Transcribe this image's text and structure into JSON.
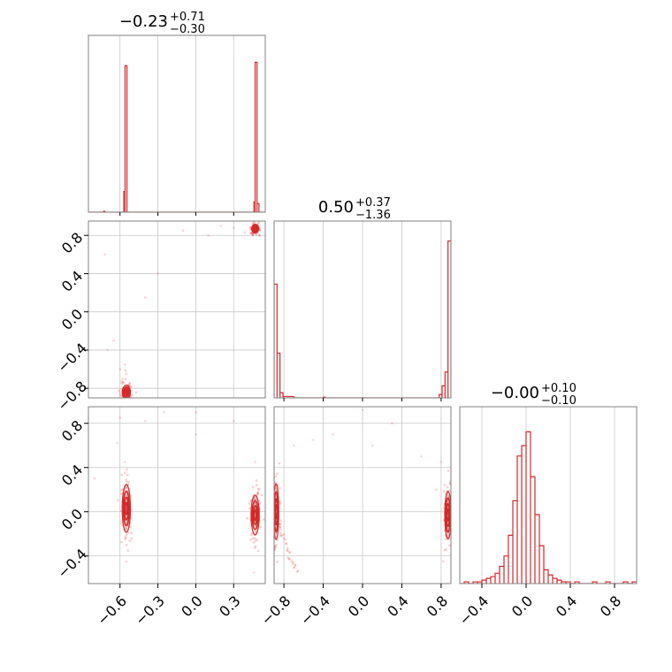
{
  "chart_data": {
    "type": "corner",
    "color": "#d62728",
    "grid": true,
    "panels": [
      {
        "kind": "hist",
        "row": 0,
        "col": 0,
        "title": {
          "median": "−0.23",
          "plus": "+0.71",
          "minus": "−0.30"
        },
        "xlim": [
          -0.85,
          0.55
        ],
        "bins": [
          [
            -0.73,
            -0.72,
            0.005
          ],
          [
            -0.57,
            -0.56,
            0.12
          ],
          [
            -0.56,
            -0.545,
            0.85
          ],
          [
            0.46,
            0.47,
            0.06
          ],
          [
            0.47,
            0.485,
            0.87
          ],
          [
            0.485,
            0.5,
            0.05
          ]
        ],
        "xgrid": [
          -0.6,
          -0.3,
          0.0,
          0.3
        ]
      },
      {
        "kind": "hist",
        "row": 1,
        "col": 1,
        "title": {
          "median": "0.50",
          "plus": "+0.37",
          "minus": "−1.36"
        },
        "xlim": [
          -0.9,
          0.9
        ],
        "bins": [
          [
            -0.9,
            -0.87,
            0.66
          ],
          [
            -0.87,
            -0.84,
            0.26
          ],
          [
            -0.84,
            -0.81,
            0.03
          ],
          [
            -0.81,
            -0.7,
            0.008
          ],
          [
            -0.4,
            -0.38,
            0.004
          ],
          [
            0.78,
            0.81,
            0.02
          ],
          [
            0.81,
            0.84,
            0.07
          ],
          [
            0.84,
            0.87,
            0.15
          ],
          [
            0.87,
            0.9,
            0.91
          ]
        ],
        "xgrid": [
          -0.8,
          -0.4,
          0.0,
          0.4,
          0.8
        ]
      },
      {
        "kind": "hist",
        "row": 2,
        "col": 2,
        "title": {
          "median": "−0.00",
          "plus": "+0.10",
          "minus": "−0.10"
        },
        "xlim": [
          -0.6,
          1.0
        ],
        "bins": [
          [
            -0.56,
            -0.52,
            0.01
          ],
          [
            -0.48,
            -0.44,
            0.01
          ],
          [
            -0.44,
            -0.4,
            0.01
          ],
          [
            -0.4,
            -0.36,
            0.02
          ],
          [
            -0.36,
            -0.32,
            0.03
          ],
          [
            -0.32,
            -0.28,
            0.04
          ],
          [
            -0.28,
            -0.24,
            0.06
          ],
          [
            -0.24,
            -0.2,
            0.1
          ],
          [
            -0.2,
            -0.16,
            0.16
          ],
          [
            -0.16,
            -0.12,
            0.28
          ],
          [
            -0.12,
            -0.08,
            0.48
          ],
          [
            -0.08,
            -0.04,
            0.74
          ],
          [
            -0.04,
            0.0,
            0.8
          ],
          [
            0.0,
            0.04,
            0.88
          ],
          [
            0.04,
            0.08,
            0.62
          ],
          [
            0.08,
            0.12,
            0.4
          ],
          [
            0.12,
            0.16,
            0.22
          ],
          [
            0.16,
            0.2,
            0.08
          ],
          [
            0.2,
            0.24,
            0.05
          ],
          [
            0.24,
            0.28,
            0.03
          ],
          [
            0.28,
            0.32,
            0.02
          ],
          [
            0.32,
            0.36,
            0.01
          ],
          [
            0.36,
            0.4,
            0.01
          ],
          [
            0.44,
            0.48,
            0.01
          ],
          [
            0.6,
            0.64,
            0.01
          ],
          [
            0.72,
            0.76,
            0.01
          ],
          [
            0.88,
            0.92,
            0.01
          ],
          [
            0.96,
            1.0,
            0.01
          ]
        ],
        "xgrid": [
          -0.4,
          0.0,
          0.4,
          0.8
        ]
      },
      {
        "kind": "scatter",
        "row": 1,
        "col": 0,
        "xlim": [
          -0.85,
          0.55
        ],
        "ylim": [
          -0.9,
          0.95
        ],
        "xgrid": [
          -0.6,
          -0.3,
          0.0,
          0.3
        ],
        "ygrid": [
          -0.8,
          -0.4,
          0.0,
          0.4,
          0.8
        ],
        "clusters": [
          [
            0.47,
            0.87,
            0.015,
            0.025
          ],
          [
            -0.55,
            -0.84,
            0.018,
            0.04
          ]
        ],
        "points": [
          [
            -0.72,
            0.6
          ],
          [
            -0.3,
            0.4
          ],
          [
            0.1,
            0.8
          ],
          [
            -0.65,
            -0.3
          ],
          [
            -0.6,
            -0.6
          ],
          [
            -0.55,
            -0.65
          ],
          [
            -0.4,
            0.15
          ],
          [
            0.3,
            0.88
          ],
          [
            -0.58,
            -0.7
          ],
          [
            0.2,
            0.9
          ],
          [
            -0.7,
            -0.4
          ],
          [
            -0.1,
            0.85
          ],
          [
            -0.56,
            -0.55
          ]
        ]
      },
      {
        "kind": "scatter",
        "row": 2,
        "col": 0,
        "xlim": [
          -0.85,
          0.55
        ],
        "ylim": [
          -0.65,
          0.95
        ],
        "xgrid": [
          -0.6,
          -0.3,
          0.0,
          0.3
        ],
        "ygrid": [
          -0.4,
          0.0,
          0.4,
          0.8
        ],
        "clusters": [
          [
            -0.55,
            0.03,
            0.018,
            0.12
          ],
          [
            0.47,
            -0.03,
            0.018,
            0.1
          ]
        ],
        "points": [
          [
            -0.62,
            0.62
          ],
          [
            -0.4,
            0.82
          ],
          [
            -0.25,
            0.9
          ],
          [
            0.0,
            0.7
          ],
          [
            0.3,
            0.82
          ],
          [
            -0.55,
            -0.45
          ],
          [
            -0.56,
            0.45
          ],
          [
            0.47,
            0.45
          ],
          [
            0.46,
            -0.55
          ],
          [
            -0.8,
            0.3
          ],
          [
            -0.6,
            0.85
          ],
          [
            0.0,
            0.9
          ]
        ]
      },
      {
        "kind": "scatter",
        "row": 2,
        "col": 1,
        "xlim": [
          -0.9,
          0.9
        ],
        "ylim": [
          -0.65,
          0.95
        ],
        "xgrid": [
          -0.8,
          -0.4,
          0.0,
          0.4,
          0.8
        ],
        "ygrid": [
          -0.4,
          0.0,
          0.4,
          0.8
        ],
        "clusters": [
          [
            -0.88,
            0.0,
            0.015,
            0.14
          ],
          [
            0.87,
            -0.03,
            0.018,
            0.12
          ]
        ],
        "points": [
          [
            -0.5,
            0.65
          ],
          [
            -0.3,
            0.7
          ],
          [
            0.0,
            0.92
          ],
          [
            0.3,
            0.8
          ],
          [
            0.6,
            0.5
          ],
          [
            0.8,
            0.45
          ],
          [
            -0.7,
            0.6
          ],
          [
            0.1,
            0.6
          ],
          [
            0.82,
            -0.45
          ],
          [
            0.75,
            0.2
          ]
        ],
        "arc": [
          [
            -0.88,
            0.05
          ],
          [
            -0.86,
            -0.1
          ],
          [
            -0.82,
            -0.2
          ],
          [
            -0.78,
            -0.3
          ],
          [
            -0.74,
            -0.4
          ],
          [
            -0.7,
            -0.48
          ],
          [
            -0.66,
            -0.54
          ]
        ]
      }
    ],
    "x_ticks": [
      {
        "col": 0,
        "values": [
          -0.6,
          -0.3,
          0.0,
          0.3
        ],
        "labels": [
          "−0.6",
          "−0.3",
          "0.0",
          "0.3"
        ]
      },
      {
        "col": 1,
        "values": [
          -0.8,
          -0.4,
          0.0,
          0.4,
          0.8
        ],
        "labels": [
          "−0.8",
          "−0.4",
          "0.0",
          "0.4",
          "0.8"
        ]
      },
      {
        "col": 2,
        "values": [
          -0.4,
          0.0,
          0.4,
          0.8
        ],
        "labels": [
          "−0.4",
          "0.0",
          "0.4",
          "0.8"
        ]
      }
    ],
    "y_ticks": [
      {
        "row": 1,
        "values": [
          0.8,
          0.4,
          0.0,
          -0.4,
          -0.8
        ],
        "labels": [
          "0.8",
          "0.4",
          "0.0",
          "−0.4",
          "−0.8"
        ]
      },
      {
        "row": 2,
        "values": [
          0.8,
          0.4,
          0.0,
          -0.4
        ],
        "labels": [
          "0.8",
          "0.4",
          "0.0",
          "−0.4"
        ]
      }
    ]
  }
}
